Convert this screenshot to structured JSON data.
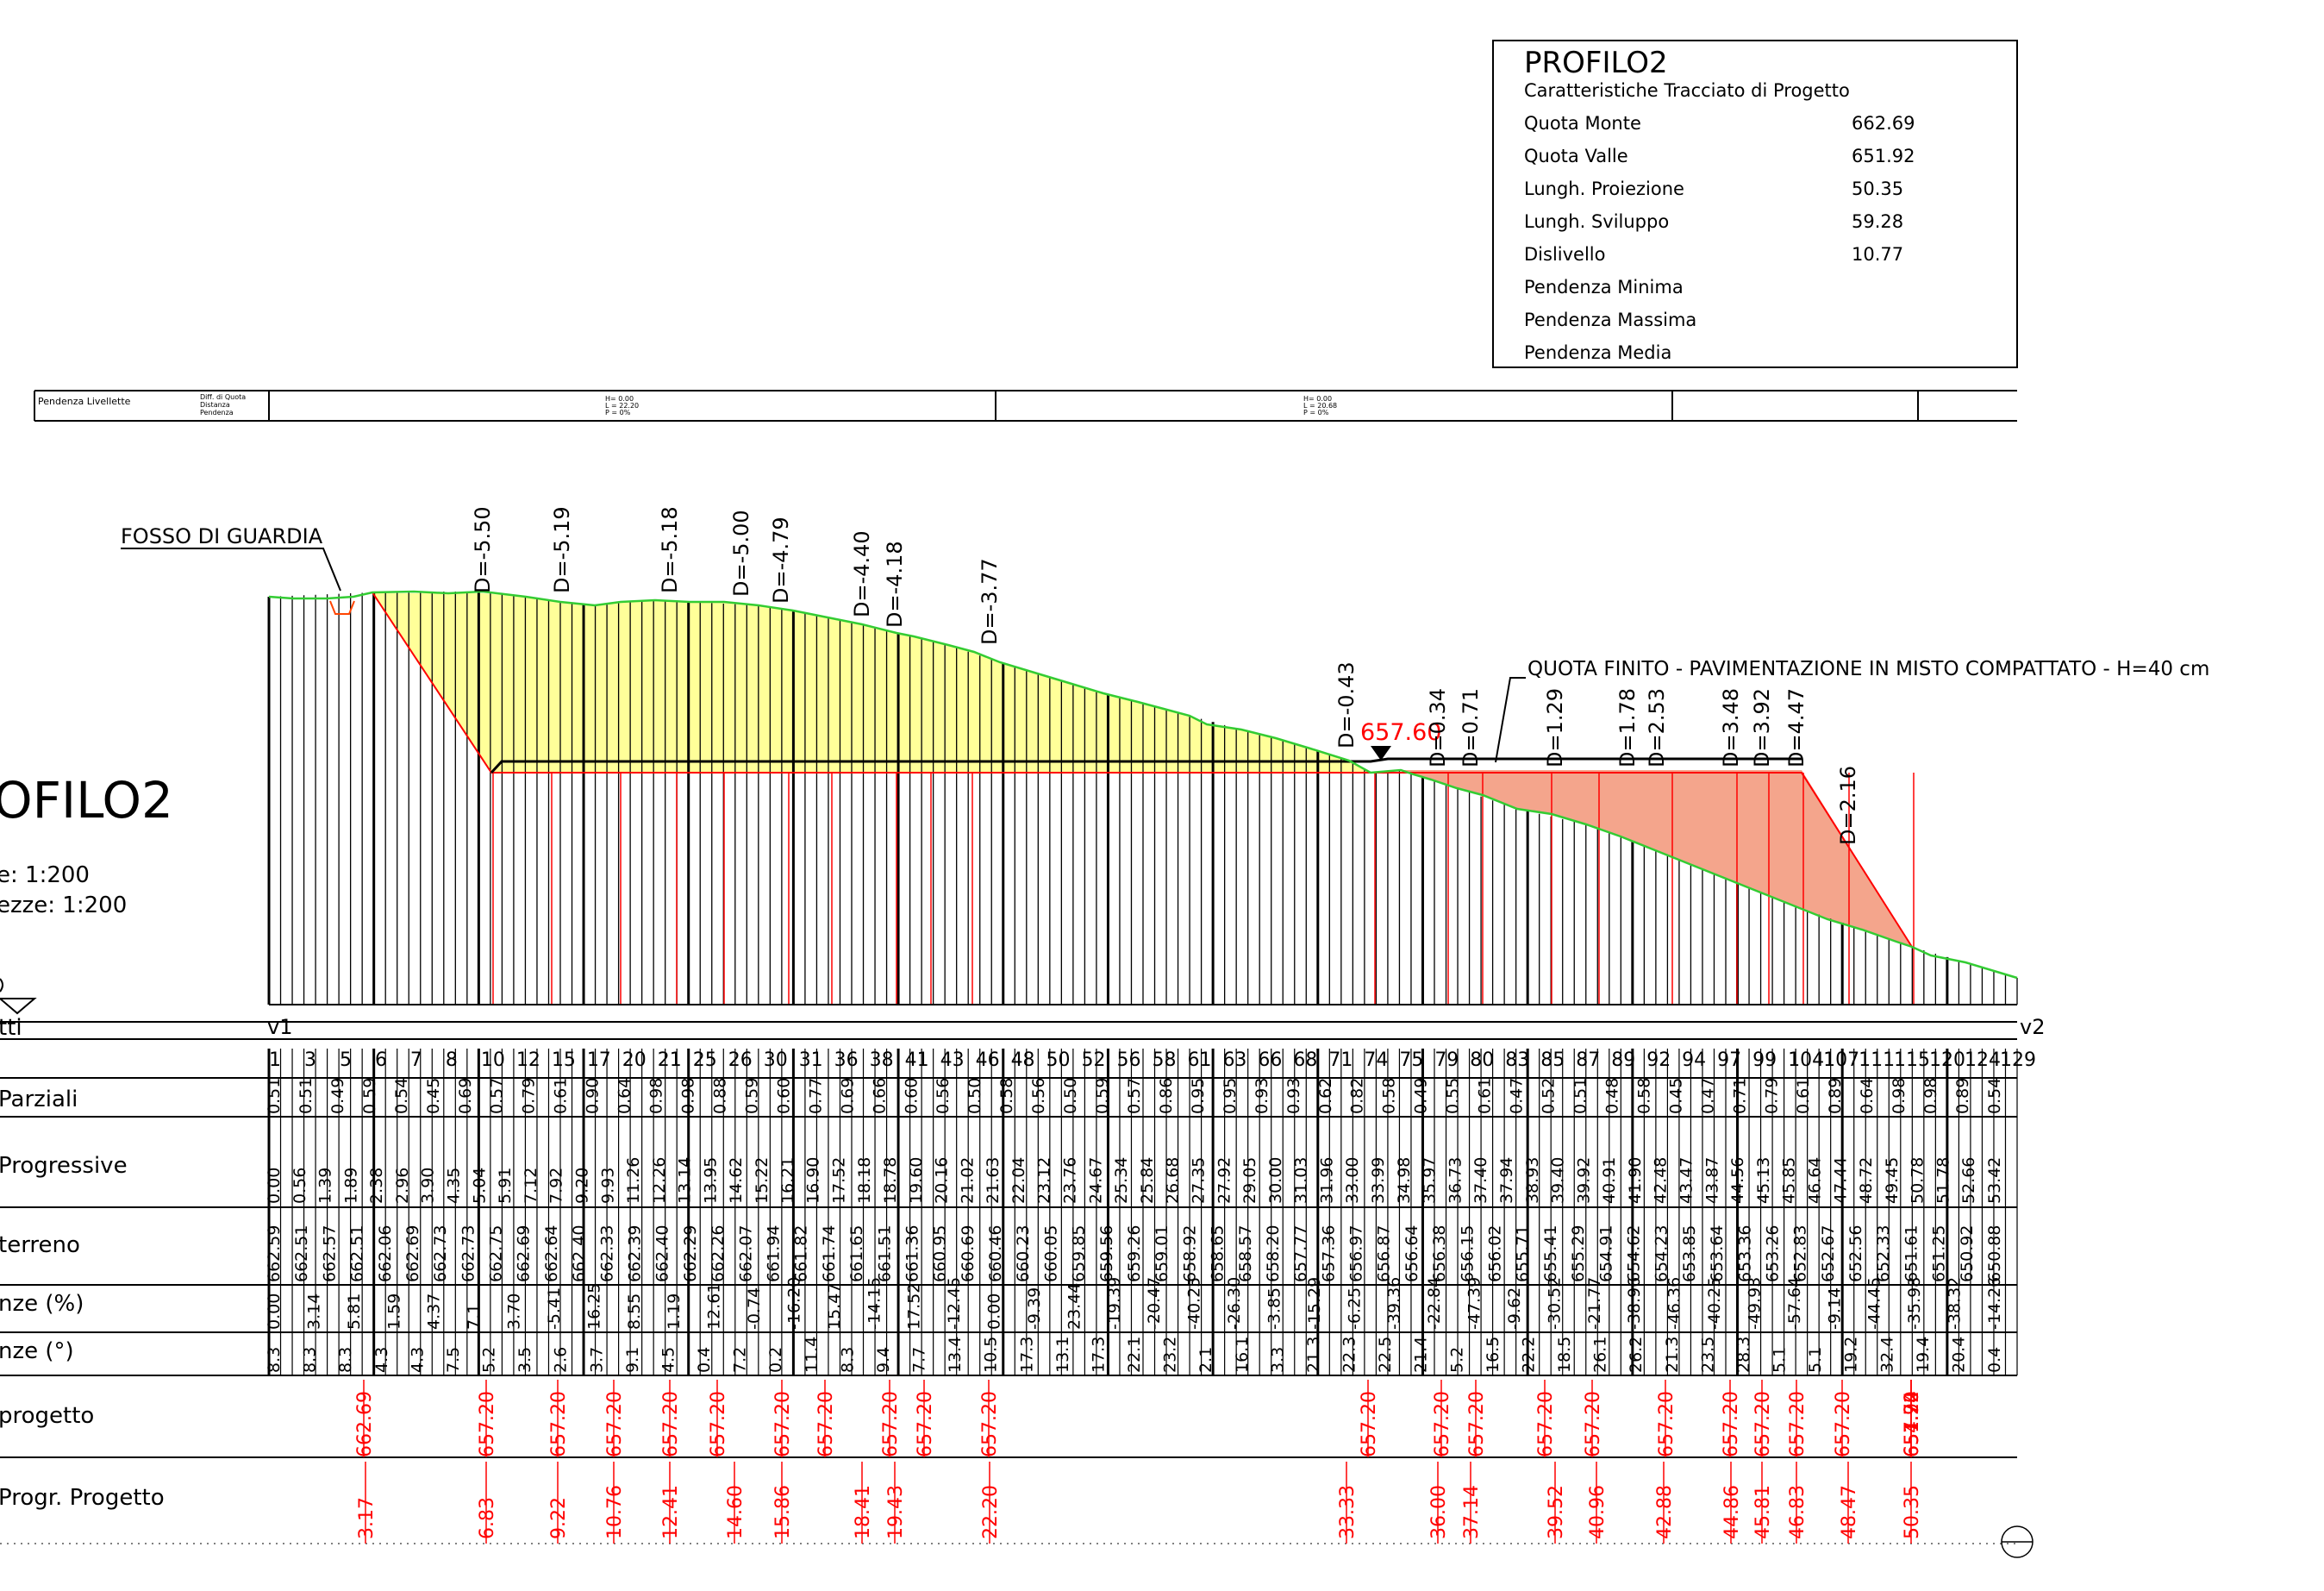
{
  "info_box": {
    "title": "PROFILO2",
    "subtitle": "Caratteristiche Tracciato di Progetto",
    "rows": [
      {
        "label": "Quota Monte",
        "value": "662.69"
      },
      {
        "label": "Quota Valle",
        "value": "651.92"
      },
      {
        "label": "Lungh. Proiezione",
        "value": "50.35"
      },
      {
        "label": "Lungh. Sviluppo",
        "value": "59.28"
      },
      {
        "label": "Dislivello",
        "value": "10.77"
      },
      {
        "label": "Pendenza Minima",
        "value": ""
      },
      {
        "label": "Pendenza Massima",
        "value": ""
      },
      {
        "label": "Pendenza Media",
        "value": ""
      }
    ]
  },
  "pendenza_strip": {
    "label": "Pendenza Livellette",
    "legend": [
      "Diff. di Quota",
      "Distanza",
      "Pendenza"
    ],
    "seg1": [
      "H= 0.00",
      "L = 22.20",
      "P = 0%"
    ],
    "seg2": [
      "H= 0.00",
      "L = 20.68",
      "P = 0%"
    ]
  },
  "left_title": {
    "big": "OFILO2",
    "scale1": "e:    1:200",
    "scale2": "ezze:  1:200"
  },
  "annotations": {
    "fosso": "FOSSO DI GUARDIA",
    "quota_finito": "QUOTA FINITO - PAVIMENTAZIONE IN MISTO COMPATTATO - H=40 cm",
    "level_marker": "657.60",
    "vertex_start": "v1",
    "vertex_end": "v2",
    "picchetti": "tti"
  },
  "d_labels": [
    "D=-5.50",
    "D=-5.19",
    "D=-5.18",
    "D=-5.00",
    "D=-4.79",
    "D=-4.40",
    "D=-4.18",
    "D=-3.77",
    "D=-0.43",
    "D=0.34",
    "D=0.71",
    "D=1.29",
    "D=1.78",
    "D=2.53",
    "D=3.48",
    "D=3.92",
    "D=4.47",
    "D=2.16"
  ],
  "section_numbers": [
    "1",
    "3",
    "5",
    "6",
    "7",
    "8",
    "10",
    "12",
    "15",
    "17",
    "20",
    "21",
    "25",
    "26",
    "30",
    "31",
    "36",
    "38",
    "41",
    "43",
    "46",
    "48",
    "50",
    "52",
    "56",
    "58",
    "61",
    "63",
    "66",
    "68",
    "71",
    "74",
    "75",
    "79",
    "80",
    "83",
    "85",
    "87",
    "89",
    "92",
    "94",
    "97",
    "99",
    "104",
    "107",
    "111",
    "115",
    "120",
    "124",
    "129"
  ],
  "rows": {
    "parziali": "Parziali",
    "progressive": "Progressive",
    "terreno": "terreno",
    "pendenze_pct": "nze  (%)",
    "pendenze_deg": "nze  (°)",
    "quote_progetto": "progetto",
    "progr_progetto": "Progr.  Progetto"
  },
  "parziali_values": [
    "0.51",
    "0.51",
    "0.49",
    "0.59",
    "0.54",
    "0.45",
    "0.69",
    "0.57",
    "0.79",
    "0.61",
    "0.90",
    "0.64",
    "0.98",
    "0.98",
    "0.88",
    "0.59",
    "0.60",
    "0.77",
    "0.69",
    "0.66",
    "0.60",
    "0.56",
    "0.50",
    "0.58",
    "0.56",
    "0.50",
    "0.59",
    "0.57",
    "0.86",
    "0.95",
    "0.95",
    "0.93",
    "0.93",
    "0.62",
    "0.82",
    "0.58",
    "0.49",
    "0.55",
    "0.61",
    "0.47",
    "0.52",
    "0.51",
    "0.48",
    "0.58",
    "0.45",
    "0.47",
    "0.71",
    "0.79",
    "0.61",
    "0.89",
    "0.64",
    "0.98",
    "0.98",
    "0.89",
    "0.54"
  ],
  "progressive_values": [
    "0.00",
    "0.56",
    "1.39",
    "1.89",
    "2.38",
    "2.96",
    "3.90",
    "4.35",
    "5.04",
    "5.91",
    "7.12",
    "7.92",
    "9.20",
    "9.93",
    "11.26",
    "12.26",
    "13.14",
    "13.95",
    "14.62",
    "15.22",
    "16.21",
    "16.90",
    "17.52",
    "18.18",
    "18.78",
    "19.60",
    "20.16",
    "21.02",
    "21.63",
    "22.04",
    "23.12",
    "23.76",
    "24.67",
    "25.34",
    "25.84",
    "26.68",
    "27.35",
    "27.92",
    "29.05",
    "30.00",
    "31.03",
    "31.96",
    "33.00",
    "33.99",
    "34.98",
    "35.97",
    "36.73",
    "37.40",
    "37.94",
    "38.93",
    "39.40",
    "39.92",
    "40.91",
    "41.90",
    "42.48",
    "43.47",
    "43.87",
    "44.56",
    "45.13",
    "45.85",
    "46.64",
    "47.44",
    "48.72",
    "49.45",
    "50.78",
    "51.78",
    "52.66",
    "53.42"
  ],
  "terreno_values": [
    "662.59",
    "662.51",
    "662.57",
    "662.51",
    "662.06",
    "662.69",
    "662.73",
    "662.73",
    "662.75",
    "662.69",
    "662.64",
    "662.40",
    "662.33",
    "662.39",
    "662.40",
    "662.29",
    "662.26",
    "662.07",
    "661.94",
    "661.82",
    "661.74",
    "661.65",
    "661.51",
    "661.36",
    "660.95",
    "660.69",
    "660.46",
    "660.23",
    "660.05",
    "659.85",
    "659.56",
    "659.26",
    "659.01",
    "658.92",
    "658.65",
    "658.57",
    "658.20",
    "657.77",
    "657.36",
    "656.97",
    "656.87",
    "656.64",
    "656.38",
    "656.15",
    "656.02",
    "655.71",
    "655.41",
    "655.29",
    "654.91",
    "654.62",
    "654.23",
    "653.85",
    "653.64",
    "653.36",
    "653.26",
    "652.83",
    "652.67",
    "652.56",
    "652.33",
    "651.61",
    "651.25",
    "650.92",
    "650.88"
  ],
  "pendenze_pct_values": [
    "0.00",
    "3.14",
    "5.81",
    "1.59",
    "4.37",
    "7.1",
    "3.70",
    "-5.41",
    "16.25",
    "8.55",
    "1.19",
    "12.61",
    "-0.74",
    "-16.20",
    "15.47",
    "-14.15",
    "17.52",
    "-12.45",
    "0.00",
    "-9.39",
    "23.44",
    "-19.39",
    "-20.47",
    "-40.25",
    "-26.30",
    "-3.85",
    "-15.29",
    "-6.25",
    "-39.36",
    "-22.84",
    "-47.39",
    "-9.62",
    "-30.52",
    "-21.77",
    "-38.96",
    "-46.36",
    "-40.25",
    "-49.93",
    "-57.64",
    "-9.14",
    "-44.45",
    "-35.98",
    "-38.32",
    "-14.26"
  ],
  "pendenze_deg_values": [
    "8.3",
    "8.3",
    "8.3",
    "4.3",
    "4.3",
    "7.5",
    "5.2",
    "3.5",
    "2.6",
    "3.7",
    "9.1",
    "4.5",
    "0.4",
    "7.2",
    "0.2",
    "11.4",
    "8.3",
    "9.4",
    "7.7",
    "13.4",
    "10.5",
    "17.3",
    "13.1",
    "17.3",
    "22.1",
    "23.2",
    "2.1",
    "16.1",
    "3.3",
    "21.3",
    "22.3",
    "22.5",
    "21.4",
    "5.2",
    "16.5",
    "22.2",
    "18.5",
    "26.1",
    "26.2",
    "21.3",
    "23.5",
    "28.3",
    "5.1",
    "5.1",
    "19.2",
    "32.4",
    "19.4",
    "20.4",
    "0.4"
  ],
  "quote_progetto_values": [
    "662.69",
    "657.20",
    "657.20",
    "657.20",
    "657.20",
    "657.20",
    "657.20",
    "657.20",
    "657.20",
    "657.20",
    "657.20",
    "657.20",
    "657.20",
    "657.20",
    "657.20",
    "657.20",
    "657.20",
    "657.20",
    "657.20",
    "657.20",
    "657.20",
    "657.20",
    "654.74",
    "651.92"
  ],
  "progr_progetto_values": [
    "3.17",
    "6.83",
    "9.22",
    "10.76",
    "12.41",
    "14.60",
    "15.86",
    "18.41",
    "19.43",
    "22.20",
    "33.33",
    "36.00",
    "37.14",
    "39.52",
    "40.96",
    "42.88",
    "44.86",
    "45.81",
    "46.83",
    "48.47",
    "50.35"
  ],
  "colors": {
    "cut_fill": "#ffff99",
    "fill_fill": "#f4a58c",
    "terrain_line": "#33cc33",
    "design_line": "#ff0000",
    "project_text": "#ff0000",
    "ink": "#000000"
  }
}
